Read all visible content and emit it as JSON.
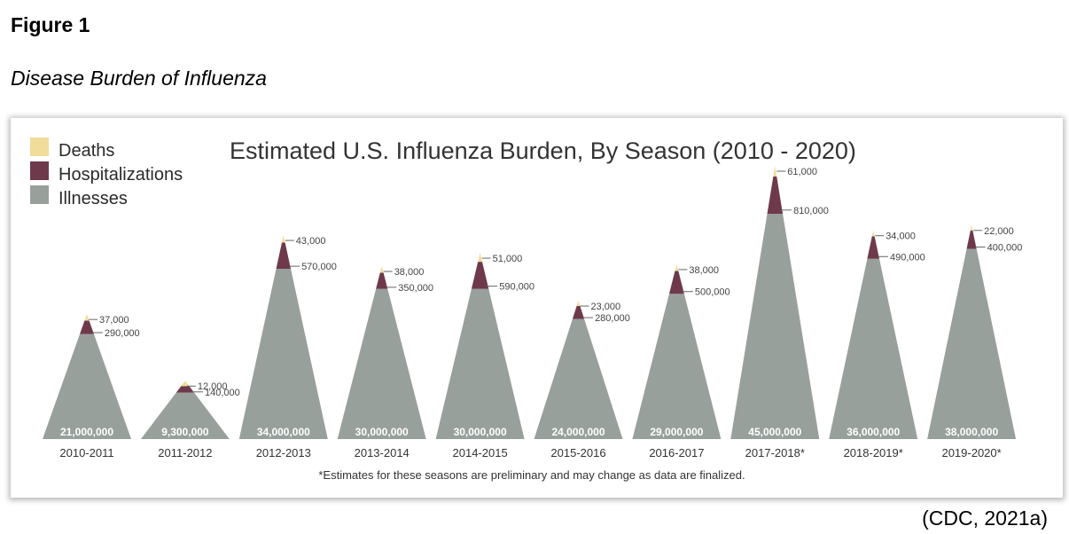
{
  "figure_label": "Figure 1",
  "figure_caption": "Disease Burden of Influenza",
  "citation": "(CDC, 2021a)",
  "colors": {
    "deaths": "#f1dc9a",
    "hospitalizations": "#6e3a4b",
    "illnesses": "#98a09c"
  },
  "chart_data": {
    "type": "area",
    "title": "Estimated U.S. Influenza Burden, By Season (2010 - 2020)",
    "legend": [
      "Deaths",
      "Hospitalizations",
      "Illnesses"
    ],
    "legend_position": "top-left",
    "footnote": "*Estimates for these seasons are preliminary and may change as data are finalized.",
    "categories": [
      "2010-2011",
      "2011-2012",
      "2012-2013",
      "2013-2014",
      "2014-2015",
      "2015-2016",
      "2016-2017",
      "2017-2018*",
      "2018-2019*",
      "2019-2020*"
    ],
    "series": [
      {
        "name": "Illnesses",
        "values": [
          21000000,
          9300000,
          34000000,
          30000000,
          30000000,
          24000000,
          29000000,
          45000000,
          36000000,
          38000000
        ],
        "labels": [
          "21,000,000",
          "9,300,000",
          "34,000,000",
          "30,000,000",
          "30,000,000",
          "24,000,000",
          "29,000,000",
          "45,000,000",
          "36,000,000",
          "38,000,000"
        ]
      },
      {
        "name": "Hospitalizations",
        "values": [
          290000,
          140000,
          570000,
          350000,
          590000,
          280000,
          500000,
          810000,
          490000,
          400000
        ],
        "labels": [
          "290,000",
          "140,000",
          "570,000",
          "350,000",
          "590,000",
          "280,000",
          "500,000",
          "810,000",
          "490,000",
          "400,000"
        ]
      },
      {
        "name": "Deaths",
        "values": [
          37000,
          12000,
          43000,
          38000,
          51000,
          23000,
          38000,
          61000,
          34000,
          22000
        ],
        "labels": [
          "37,000",
          "12,000",
          "43,000",
          "38,000",
          "51,000",
          "23,000",
          "38,000",
          "61,000",
          "34,000",
          "22,000"
        ]
      }
    ]
  }
}
